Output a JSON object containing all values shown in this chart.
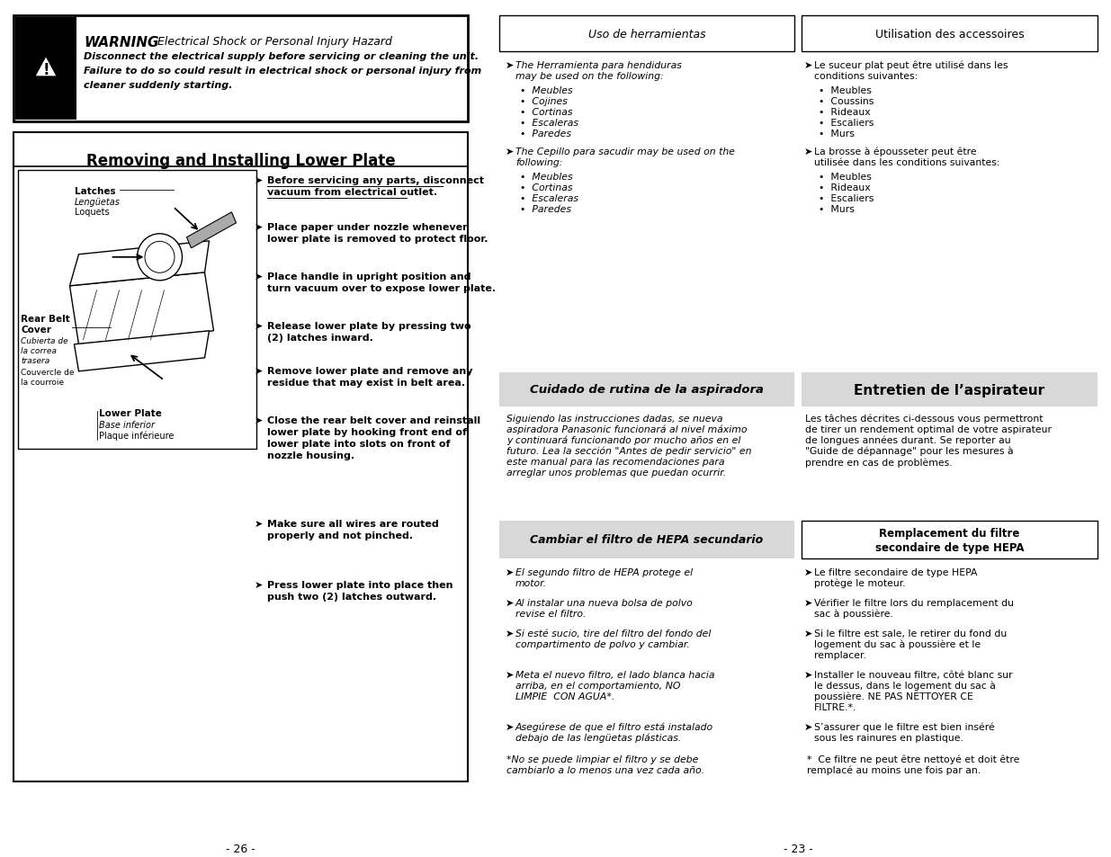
{
  "page_bg": "#ffffff",
  "left_page": {
    "warning": {
      "title": "WARNING",
      "subtitle": " Electrical Shock or Personal Injury Hazard",
      "body": [
        "Disconnect the electrical supply before servicing or cleaning the unit.",
        "Failure to do so could result in electrical shock or personal injury from",
        "cleaner suddenly starting."
      ]
    },
    "section_title": "Removing and Installing Lower Plate",
    "steps": [
      [
        "Before servicing any parts, disconnect",
        "vacuum from electrical outlet."
      ],
      [
        "Place paper under nozzle whenever",
        "lower plate is removed to protect floor."
      ],
      [
        "Place handle in upright position and",
        "turn vacuum over to expose lower plate."
      ],
      [
        "Release lower plate by pressing two",
        "(2) latches inward."
      ],
      [
        "Remove lower plate and remove any",
        "residue that may exist in belt area."
      ],
      [
        "Close the rear belt cover and reinstall",
        "lower plate by hooking front end of",
        "lower plate into slots on front of",
        "nozzle housing."
      ],
      [
        "Make sure all wires are routed",
        "properly and not pinched."
      ],
      [
        "Press lower plate into place then",
        "push two (2) latches outward."
      ]
    ],
    "page_num": "- 26 -"
  },
  "right_page": {
    "box1_es": "Uso de herramientas",
    "box1_fr": "Utilisation des accessoires",
    "s1_es_intro": [
      "The Herramienta para hendiduras",
      "may be used on the following:"
    ],
    "s1_es_items": [
      "Meubles",
      "Cojines",
      "Cortinas",
      "Escaleras",
      "Paredes"
    ],
    "s1_fr_intro": [
      "Le suceur plat peut être utilisé dans les",
      "conditions suivantes:"
    ],
    "s1_fr_items": [
      "Meubles",
      "Coussins",
      "Rideaux",
      "Escaliers",
      "Murs"
    ],
    "s2_es_intro": [
      "The Cepillo para sacudir may be used on the",
      "following:"
    ],
    "s2_es_items": [
      "Meubles",
      "Cortinas",
      "Escaleras",
      "Paredes"
    ],
    "s2_fr_intro": [
      "La brosse à épousseter peut être",
      "utilisée dans les conditions suivantes:"
    ],
    "s2_fr_items": [
      "Meubles",
      "Rideaux",
      "Escaliers",
      "Murs"
    ],
    "box2_es": "Cuidado de rutina de la aspiradora",
    "box2_fr": "Entretien de l’aspirateur",
    "cuidado": [
      "Siguiendo las instrucciones dadas, se nueva",
      "aspiradora Panasonic funcionará al nivel máximo",
      "y continuará funcionando por mucho años en el",
      "futuro. Lea la sección \"Antes de pedir servicio\" en",
      "este manual para las recomendaciones para",
      "arreglar unos problemas que puedan ocurrir."
    ],
    "entretien": [
      "Les tâches décrites ci-dessous vous permettront",
      "de tirer un rendement optimal de votre aspirateur",
      "de longues années durant. Se reporter au",
      "\"Guide de dépannage\" pour les mesures à",
      "prendre en cas de problèmes."
    ],
    "box3_es": "Cambiar el filtro de HEPA secundario",
    "box3_fr_l1": "Remplacement du filtre",
    "box3_fr_l2": "secondaire de type HEPA",
    "hepa_es": [
      [
        "El segundo filtro de HEPA protege el",
        "motor."
      ],
      [
        "Al instalar una nueva bolsa de polvo",
        "revise el filtro."
      ],
      [
        "Si esté sucio, tire del filtro del fondo del",
        "compartimento de polvo y cambiar."
      ],
      [
        "Meta el nuevo filtro, el lado blanca hacia",
        "arriba, en el comportamiento, NO",
        "LIMPIE  CON AGUA*."
      ],
      [
        "Asegúrese de que el filtro está instalado",
        "debajo de las lengüetas plásticas."
      ]
    ],
    "hepa_fr": [
      [
        "Le filtre secondaire de type HEPA",
        "protège le moteur."
      ],
      [
        "Vérifier le filtre lors du remplacement du",
        "sac à poussière."
      ],
      [
        "Si le filtre est sale, le retirer du fond du",
        "logement du sac à poussière et le",
        "remplacer."
      ],
      [
        "Installer le nouveau filtre, côté blanc sur",
        "le dessus, dans le logement du sac à",
        "poussière. NE PAS NETTOYER CE",
        "FILTRE.*."
      ],
      [
        "S’assurer que le filtre est bien inséré",
        "sous les rainures en plastique."
      ]
    ],
    "fn_es": [
      "*No se puede limpiar el filtro y se debe",
      "cambiarlo a lo menos una vez cada año."
    ],
    "fn_fr": [
      "*  Ce filtre ne peut être nettoyé et doit être",
      "remplacé au moins une fois par an."
    ],
    "page_num": "- 23 -"
  }
}
